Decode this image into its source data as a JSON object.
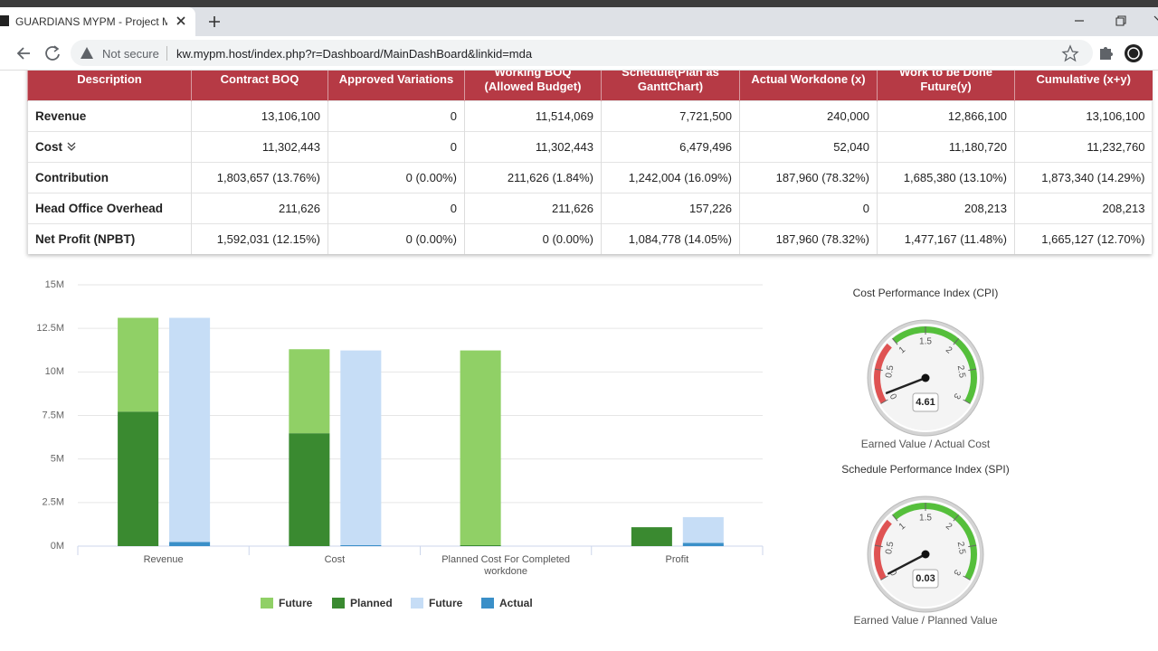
{
  "browser": {
    "tab_title": "GUARDIANS MYPM - Project Ma",
    "security_label": "Not secure",
    "url": "kw.mypm.host/index.php?r=Dashboard/MainDashBoard&linkid=mda"
  },
  "table": {
    "header": [
      "Description",
      "Contract BOQ",
      "Approved Variations",
      "Working BOQ (Allowed Budget)",
      "Schedule(Plan as GanttChart)",
      "Actual Workdone (x)",
      "Work to be Done Future(y)",
      "Cumulative (x+y)"
    ],
    "rows": [
      [
        "Revenue",
        "13,106,100",
        "0",
        "11,514,069",
        "7,721,500",
        "240,000",
        "12,866,100",
        "13,106,100"
      ],
      [
        "Cost",
        "11,302,443",
        "0",
        "11,302,443",
        "6,479,496",
        "52,040",
        "11,180,720",
        "11,232,760"
      ],
      [
        "Contribution",
        "1,803,657 (13.76%)",
        "0 (0.00%)",
        "211,626 (1.84%)",
        "1,242,004 (16.09%)",
        "187,960 (78.32%)",
        "1,685,380 (13.10%)",
        "1,873,340 (14.29%)"
      ],
      [
        "Head Office Overhead",
        "211,626",
        "0",
        "211,626",
        "157,226",
        "0",
        "208,213",
        "208,213"
      ],
      [
        "Net Profit (NPBT)",
        "1,592,031 (12.15%)",
        "0 (0.00%)",
        "0 (0.00%)",
        "1,084,778 (14.05%)",
        "187,960 (78.32%)",
        "1,477,167 (11.48%)",
        "1,665,127 (12.70%)"
      ]
    ]
  },
  "chart_data": [
    {
      "type": "bar",
      "stacked": true,
      "categories": [
        "Revenue",
        "Cost",
        "Planned Cost For Completed workdone",
        "Profit"
      ],
      "series": [
        {
          "name": "Future",
          "color": "#90d066",
          "stack": 1,
          "values": [
            5384600,
            4822947,
            11180720,
            0
          ]
        },
        {
          "name": "Planned",
          "color": "#3a8a30",
          "stack": 1,
          "values": [
            7721500,
            6479496,
            52040,
            1084778
          ]
        },
        {
          "name": "Future",
          "color": "#c6ddf6",
          "stack": 2,
          "values": [
            12866100,
            11180720,
            null,
            1477167
          ]
        },
        {
          "name": "Actual",
          "color": "#3a8fc8",
          "stack": 2,
          "values": [
            240000,
            52040,
            null,
            187960
          ]
        }
      ],
      "ylim": [
        0,
        15000000
      ],
      "yticks": [
        {
          "value": 0,
          "label": "0M"
        },
        {
          "value": 2500000,
          "label": "2.5M"
        },
        {
          "value": 5000000,
          "label": "5M"
        },
        {
          "value": 7500000,
          "label": "7.5M"
        },
        {
          "value": 10000000,
          "label": "10M"
        },
        {
          "value": 12500000,
          "label": "12.5M"
        },
        {
          "value": 15000000,
          "label": "15M"
        }
      ],
      "grid": true,
      "legend": "bottom"
    },
    {
      "type": "gauge",
      "title": "Cost Performance Index (CPI)",
      "subtitle": "Earned Value / Actual Cost",
      "value": 4.61,
      "range": [
        0,
        3
      ],
      "ticks": [
        0,
        0.5,
        1,
        1.5,
        2,
        2.5,
        3
      ],
      "bands": [
        {
          "from": 0,
          "to": 0.9,
          "color": "#df5353"
        },
        {
          "from": 1,
          "to": 3,
          "color": "#55bf3b"
        }
      ]
    },
    {
      "type": "gauge",
      "title": "Schedule Performance Index (SPI)",
      "subtitle": "Earned Value / Planned Value",
      "value": 0.03,
      "range": [
        0,
        3
      ],
      "ticks": [
        0,
        0.5,
        1,
        1.5,
        2,
        2.5,
        3
      ],
      "bands": [
        {
          "from": 0,
          "to": 0.9,
          "color": "#df5353"
        },
        {
          "from": 1,
          "to": 3,
          "color": "#55bf3b"
        }
      ]
    }
  ]
}
